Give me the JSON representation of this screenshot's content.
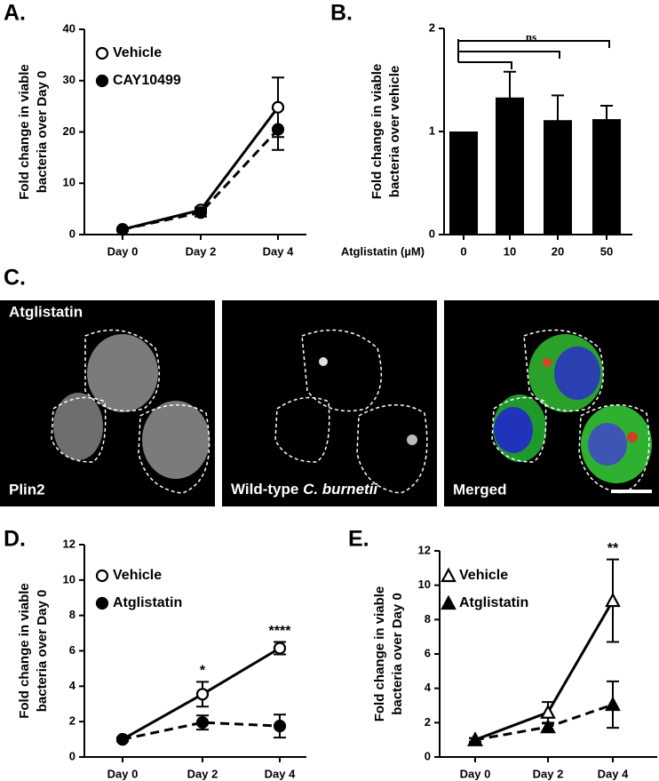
{
  "chart_data": [
    {
      "type": "line",
      "panel": "A.",
      "ylabel": [
        "Fold change in viable",
        "bacteria over Day 0"
      ],
      "categories": [
        "Day 0",
        "Day 2",
        "Day 4"
      ],
      "series": [
        {
          "name": "Vehicle",
          "color": "#000000",
          "marker": "circle-open",
          "linestyle": "solid",
          "values": [
            1,
            4.8,
            24.8
          ],
          "errors": [
            0.3,
            0.5,
            5.8
          ]
        },
        {
          "name": "CAY10499",
          "color": "#000000",
          "marker": "circle-filled",
          "linestyle": "dashed",
          "values": [
            1,
            4.3,
            20.5
          ],
          "errors": [
            0.2,
            0.8,
            4
          ]
        }
      ],
      "ylim": [
        0,
        40
      ],
      "yticks": [
        0,
        10,
        20,
        30,
        40
      ],
      "legend": "upper left"
    },
    {
      "type": "bar",
      "panel": "B.",
      "ylabel": [
        "Fold change in viable",
        "bacteria over vehicle"
      ],
      "xlabel": "Atglistatin (µM)",
      "categories": [
        "0",
        "10",
        "20",
        "50"
      ],
      "values": [
        1,
        1.33,
        1.11,
        1.12
      ],
      "errors": [
        null,
        0.25,
        0.24,
        0.13
      ],
      "color": "#000000",
      "ylim": [
        0,
        2
      ],
      "yticks": [
        0,
        1,
        2
      ],
      "annotations": [
        {
          "text": "ns"
        }
      ]
    },
    {
      "type": "line",
      "panel": "D.",
      "ylabel": [
        "Fold change in viable",
        "bacteria over Day 0"
      ],
      "categories": [
        "Day 0",
        "Day 2",
        "Day 4"
      ],
      "series": [
        {
          "name": "Vehicle",
          "color": "#000000",
          "marker": "circle-open",
          "linestyle": "solid",
          "values": [
            1,
            3.55,
            6.15
          ],
          "errors": [
            0.1,
            0.7,
            0.35
          ]
        },
        {
          "name": "Atglistatin",
          "color": "#000000",
          "marker": "circle-filled",
          "linestyle": "dashed",
          "values": [
            1,
            1.95,
            1.75
          ],
          "errors": [
            0.1,
            0.4,
            0.65
          ]
        }
      ],
      "ylim": [
        0,
        12
      ],
      "yticks": [
        0,
        2,
        4,
        6,
        8,
        10,
        12
      ],
      "legend": "upper left",
      "annotations": [
        {
          "text": "*",
          "x": "Day 2"
        },
        {
          "text": "****",
          "x": "Day 4"
        }
      ]
    },
    {
      "type": "line",
      "panel": "E.",
      "ylabel": [
        "Fold change in viable",
        "bacteria over Day 0"
      ],
      "categories": [
        "Day 0",
        "Day 2",
        "Day 4"
      ],
      "series": [
        {
          "name": "Vehicle",
          "color": "#000000",
          "marker": "triangle-open",
          "linestyle": "solid",
          "values": [
            1,
            2.6,
            9.1
          ],
          "errors": [
            0.1,
            0.6,
            2.4
          ]
        },
        {
          "name": "Atglistatin",
          "color": "#000000",
          "marker": "triangle-filled",
          "linestyle": "dashed",
          "values": [
            1,
            1.75,
            3.05
          ],
          "errors": [
            0.1,
            0.2,
            1.35
          ]
        }
      ],
      "ylim": [
        0,
        12
      ],
      "yticks": [
        0,
        2,
        4,
        6,
        8,
        10,
        12
      ],
      "legend": "upper left",
      "annotations": [
        {
          "text": "**",
          "x": "Day 4"
        }
      ]
    }
  ],
  "panel_c": {
    "label": "C.",
    "treatment": "Atglistatin",
    "images": [
      "Plin2",
      "Merged"
    ],
    "wild_type": "Wild-type",
    "species": "C. burnetii"
  }
}
